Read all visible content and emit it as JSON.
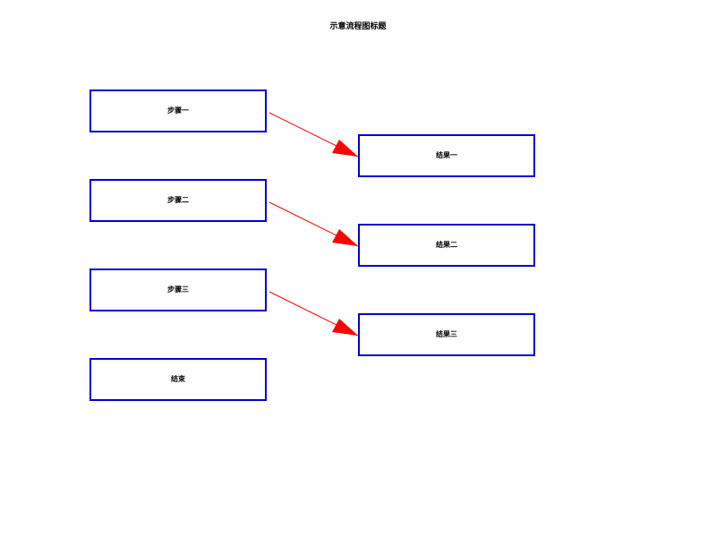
{
  "diagram": {
    "title": "示意流程图标题",
    "left_boxes": [
      {
        "label": "步骤一"
      },
      {
        "label": "步骤二"
      },
      {
        "label": "步骤三"
      },
      {
        "label": "结束"
      }
    ],
    "right_boxes": [
      {
        "label": "结果一"
      },
      {
        "label": "结果二"
      },
      {
        "label": "结果三"
      }
    ],
    "colors": {
      "box_border": "#0000cc",
      "arrow": "#ff0000",
      "text": "#000000"
    }
  }
}
